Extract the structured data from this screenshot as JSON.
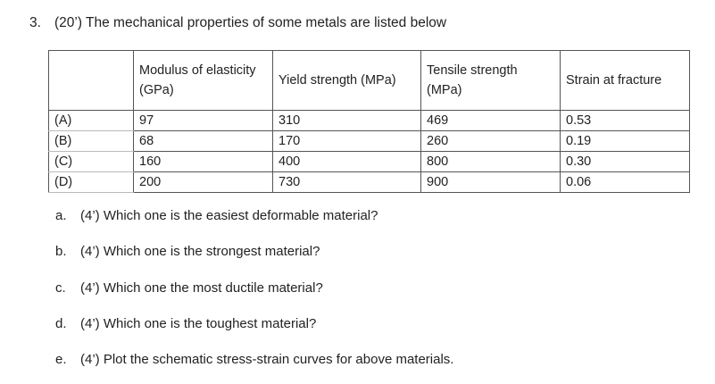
{
  "header": {
    "number": "3.",
    "title": "(20’) The mechanical properties of some metals are listed below"
  },
  "table": {
    "columns": [
      "",
      "Modulus of elasticity (GPa)",
      "Yield strength (MPa)",
      "Tensile strength (MPa)",
      "Strain at fracture"
    ],
    "rows": [
      [
        "(A)",
        "97",
        "310",
        "469",
        "0.53"
      ],
      [
        "(B)",
        "68",
        "170",
        "260",
        "0.19"
      ],
      [
        "(C)",
        "160",
        "400",
        "800",
        "0.30"
      ],
      [
        "(D)",
        "200",
        "730",
        "900",
        "0.06"
      ]
    ]
  },
  "questions": [
    {
      "label": "a.",
      "text": "(4’) Which one is the easiest deformable material?"
    },
    {
      "label": "b.",
      "text": "(4’) Which one is the strongest material?"
    },
    {
      "label": "c.",
      "text": "(4’) Which one the most ductile material?"
    },
    {
      "label": "d.",
      "text": "(4’) Which one is the toughest material?"
    },
    {
      "label": "e.",
      "text": "(4’) Plot the schematic stress-strain curves for above materials."
    }
  ]
}
